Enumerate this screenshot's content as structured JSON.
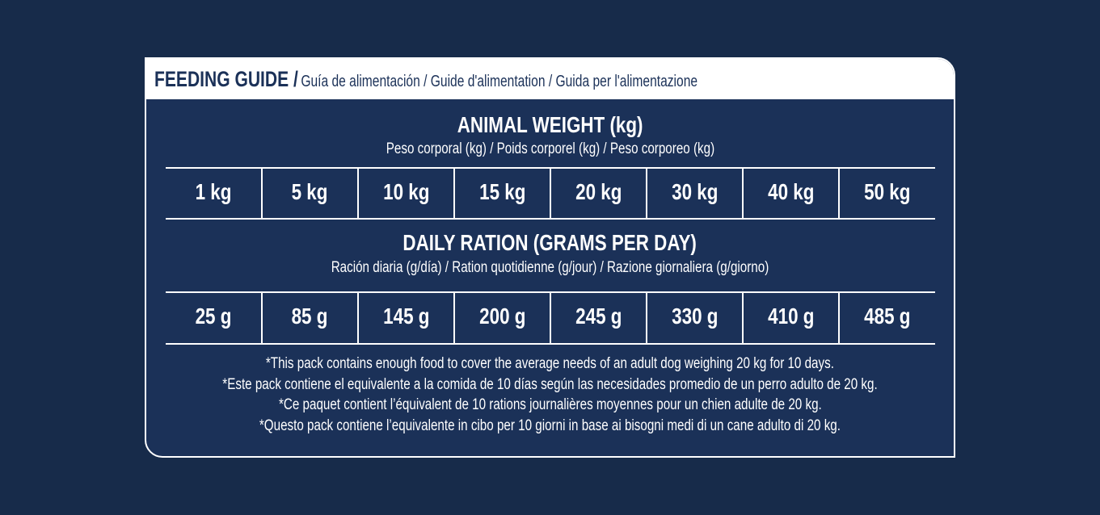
{
  "header": {
    "title": "FEEDING GUIDE /",
    "subtitle": "Guía de alimentación / Guide d'alimentation / Guida per l'alimentazione"
  },
  "weight": {
    "title": "ANIMAL WEIGHT (kg)",
    "subtitle": "Peso corporal (kg) / Poids corporel (kg) / Peso corporeo (kg)",
    "cells": [
      "1 kg",
      "5 kg",
      "10 kg",
      "15 kg",
      "20 kg",
      "30 kg",
      "40 kg",
      "50 kg"
    ]
  },
  "ration": {
    "title": "DAILY RATION (GRAMS PER DAY)",
    "subtitle": "Ración diaria (g/día) / Ration quotidienne (g/jour) / Razione giornaliera (g/giorno)",
    "cells": [
      "25 g",
      "85 g",
      "145 g",
      "200 g",
      "245 g",
      "330 g",
      "410 g",
      "485 g"
    ]
  },
  "notes": [
    "*This pack contains enough food to cover the average needs of an adult dog weighing 20 kg for 10 days.",
    "*Este pack contiene el equivalente a la comida de 10 días según las necesidades promedio de un perro adulto de 20 kg.",
    "*Ce paquet contient l’équivalent de 10 rations journalières moyennes pour un chien adulte de 20 kg.",
    "*Questo pack contiene l’equivalente in cibo per 10 giorni in base ai bisogni medi di un cane adulto di 20 kg."
  ]
}
